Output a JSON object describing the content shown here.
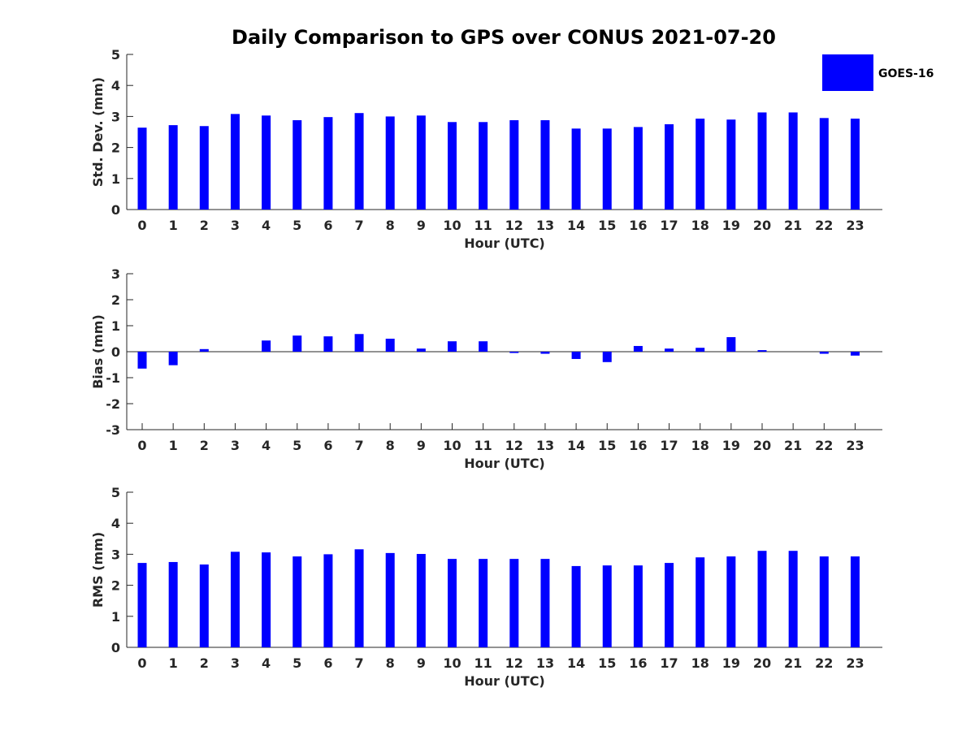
{
  "chart_data": {
    "type": "bar",
    "title": "Daily Comparison to GPS over CONUS 2021-07-20",
    "legend": {
      "label": "GOES-16",
      "color": "#0000ff",
      "placement": "top-right"
    },
    "categories": [
      "0",
      "1",
      "2",
      "3",
      "4",
      "5",
      "6",
      "7",
      "8",
      "9",
      "10",
      "11",
      "12",
      "13",
      "14",
      "15",
      "16",
      "17",
      "18",
      "19",
      "20",
      "21",
      "22",
      "23"
    ],
    "panels": [
      {
        "name": "std-dev",
        "xlabel": "Hour (UTC)",
        "ylabel": "Std. Dev. (mm)",
        "ylim": [
          0,
          5
        ],
        "yticks": [
          "0",
          "1",
          "2",
          "3",
          "4",
          "5"
        ],
        "values": [
          2.64,
          2.72,
          2.69,
          3.08,
          3.03,
          2.88,
          2.98,
          3.11,
          3.0,
          3.03,
          2.82,
          2.82,
          2.88,
          2.88,
          2.61,
          2.61,
          2.66,
          2.75,
          2.93,
          2.9,
          3.13,
          3.13,
          2.95,
          2.93
        ]
      },
      {
        "name": "bias",
        "xlabel": "Hour (UTC)",
        "ylabel": "Bias (mm)",
        "ylim": [
          -3,
          3
        ],
        "yticks": [
          "-3",
          "-2",
          "-1",
          "0",
          "1",
          "2",
          "3"
        ],
        "values": [
          -0.65,
          -0.52,
          0.1,
          0.0,
          0.43,
          0.62,
          0.59,
          0.68,
          0.5,
          0.12,
          0.4,
          0.4,
          -0.05,
          -0.08,
          -0.28,
          -0.4,
          0.22,
          0.12,
          0.15,
          0.56,
          0.06,
          0.0,
          -0.08,
          -0.15
        ]
      },
      {
        "name": "rms",
        "xlabel": "Hour (UTC)",
        "ylabel": "RMS (mm)",
        "ylim": [
          0,
          5
        ],
        "yticks": [
          "0",
          "1",
          "2",
          "3",
          "4",
          "5"
        ],
        "values": [
          2.72,
          2.75,
          2.67,
          3.08,
          3.06,
          2.93,
          3.0,
          3.16,
          3.04,
          3.01,
          2.85,
          2.85,
          2.85,
          2.85,
          2.62,
          2.64,
          2.64,
          2.72,
          2.9,
          2.93,
          3.11,
          3.11,
          2.93,
          2.93
        ]
      }
    ]
  }
}
